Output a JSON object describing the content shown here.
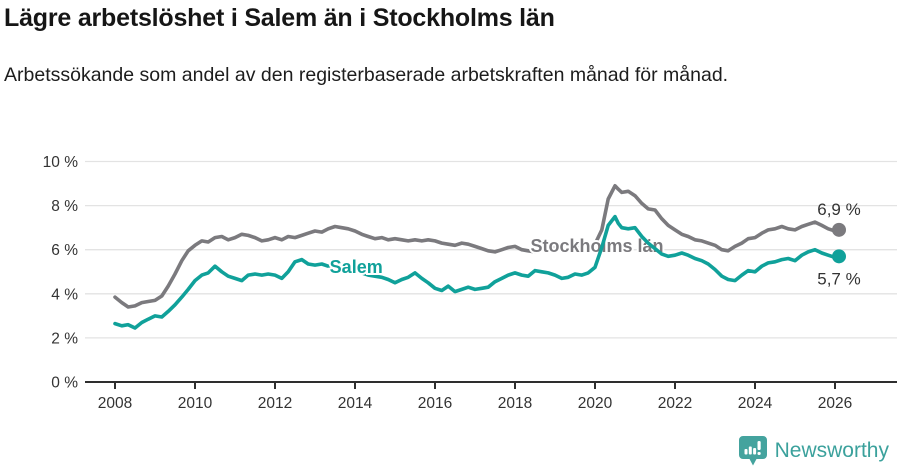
{
  "header": {
    "title": "Lägre arbetslöshet i Salem än i Stockholms län",
    "subtitle": "Arbetssökande som andel av den registerbaserade arbetskraften månad för månad."
  },
  "chart_data": {
    "type": "line",
    "title": "Lägre arbetslöshet i Salem än i Stockholms län",
    "xlabel": "",
    "ylabel": "",
    "x_range": [
      2007.3,
      2027.5
    ],
    "ylim": [
      0,
      10
    ],
    "grid": true,
    "legend": "inline-labels",
    "y_ticks": [
      {
        "value": 0,
        "label": "0 %"
      },
      {
        "value": 2,
        "label": "2 %"
      },
      {
        "value": 4,
        "label": "4 %"
      },
      {
        "value": 6,
        "label": "6 %"
      },
      {
        "value": 8,
        "label": "8 %"
      },
      {
        "value": 10,
        "label": "10 %"
      }
    ],
    "x_ticks": [
      2008,
      2010,
      2012,
      2014,
      2016,
      2018,
      2020,
      2022,
      2024,
      2026
    ],
    "colors": {
      "stockholm_gray": "#7b7a7e",
      "salem_teal": "#10a19a",
      "axis": "#2e2e2e",
      "gridline": "#e3e3e3",
      "value_label": "#333333"
    },
    "series": [
      {
        "name": "Stockholms län",
        "color": "#7b7a7e",
        "end_label": "6,9 %",
        "end_label_side": "above",
        "name_label_pos": {
          "x": 2020.05,
          "y": 6.17
        },
        "points": [
          [
            2008.0,
            3.85
          ],
          [
            2008.17,
            3.6
          ],
          [
            2008.33,
            3.4
          ],
          [
            2008.5,
            3.45
          ],
          [
            2008.67,
            3.6
          ],
          [
            2008.83,
            3.65
          ],
          [
            2009.0,
            3.7
          ],
          [
            2009.17,
            3.9
          ],
          [
            2009.33,
            4.35
          ],
          [
            2009.5,
            4.9
          ],
          [
            2009.67,
            5.5
          ],
          [
            2009.83,
            5.95
          ],
          [
            2010.0,
            6.2
          ],
          [
            2010.17,
            6.4
          ],
          [
            2010.33,
            6.35
          ],
          [
            2010.5,
            6.55
          ],
          [
            2010.67,
            6.6
          ],
          [
            2010.83,
            6.45
          ],
          [
            2011.0,
            6.55
          ],
          [
            2011.17,
            6.7
          ],
          [
            2011.33,
            6.65
          ],
          [
            2011.5,
            6.55
          ],
          [
            2011.67,
            6.4
          ],
          [
            2011.83,
            6.45
          ],
          [
            2012.0,
            6.55
          ],
          [
            2012.17,
            6.45
          ],
          [
            2012.33,
            6.6
          ],
          [
            2012.5,
            6.55
          ],
          [
            2012.67,
            6.65
          ],
          [
            2012.83,
            6.75
          ],
          [
            2013.0,
            6.85
          ],
          [
            2013.17,
            6.8
          ],
          [
            2013.33,
            6.95
          ],
          [
            2013.5,
            7.05
          ],
          [
            2013.67,
            7.0
          ],
          [
            2013.83,
            6.95
          ],
          [
            2014.0,
            6.85
          ],
          [
            2014.17,
            6.7
          ],
          [
            2014.33,
            6.6
          ],
          [
            2014.5,
            6.5
          ],
          [
            2014.67,
            6.55
          ],
          [
            2014.83,
            6.45
          ],
          [
            2015.0,
            6.5
          ],
          [
            2015.17,
            6.45
          ],
          [
            2015.33,
            6.4
          ],
          [
            2015.5,
            6.45
          ],
          [
            2015.67,
            6.4
          ],
          [
            2015.83,
            6.45
          ],
          [
            2016.0,
            6.4
          ],
          [
            2016.17,
            6.3
          ],
          [
            2016.33,
            6.25
          ],
          [
            2016.5,
            6.2
          ],
          [
            2016.67,
            6.3
          ],
          [
            2016.83,
            6.25
          ],
          [
            2017.0,
            6.15
          ],
          [
            2017.17,
            6.05
          ],
          [
            2017.33,
            5.95
          ],
          [
            2017.5,
            5.9
          ],
          [
            2017.67,
            6.0
          ],
          [
            2017.83,
            6.1
          ],
          [
            2018.0,
            6.15
          ],
          [
            2018.17,
            6.0
          ],
          [
            2018.33,
            5.95
          ],
          [
            2018.5,
            5.9
          ],
          [
            2018.67,
            6.0
          ],
          [
            2018.83,
            6.05
          ],
          [
            2019.0,
            6.1
          ],
          [
            2019.17,
            6.0
          ],
          [
            2019.33,
            5.95
          ],
          [
            2019.5,
            6.05
          ],
          [
            2019.67,
            6.1
          ],
          [
            2019.83,
            6.15
          ],
          [
            2020.0,
            6.25
          ],
          [
            2020.17,
            6.9
          ],
          [
            2020.33,
            8.3
          ],
          [
            2020.5,
            8.9
          ],
          [
            2020.58,
            8.75
          ],
          [
            2020.67,
            8.6
          ],
          [
            2020.83,
            8.65
          ],
          [
            2021.0,
            8.45
          ],
          [
            2021.17,
            8.1
          ],
          [
            2021.33,
            7.85
          ],
          [
            2021.5,
            7.8
          ],
          [
            2021.67,
            7.4
          ],
          [
            2021.83,
            7.1
          ],
          [
            2022.0,
            6.9
          ],
          [
            2022.17,
            6.7
          ],
          [
            2022.33,
            6.6
          ],
          [
            2022.5,
            6.45
          ],
          [
            2022.67,
            6.4
          ],
          [
            2022.83,
            6.3
          ],
          [
            2023.0,
            6.2
          ],
          [
            2023.17,
            6.0
          ],
          [
            2023.33,
            5.95
          ],
          [
            2023.5,
            6.15
          ],
          [
            2023.67,
            6.3
          ],
          [
            2023.83,
            6.5
          ],
          [
            2024.0,
            6.55
          ],
          [
            2024.17,
            6.75
          ],
          [
            2024.33,
            6.9
          ],
          [
            2024.5,
            6.95
          ],
          [
            2024.67,
            7.05
          ],
          [
            2024.83,
            6.95
          ],
          [
            2025.0,
            6.9
          ],
          [
            2025.17,
            7.05
          ],
          [
            2025.33,
            7.15
          ],
          [
            2025.5,
            7.25
          ],
          [
            2025.67,
            7.1
          ],
          [
            2025.83,
            6.95
          ],
          [
            2026.0,
            6.85
          ],
          [
            2026.1,
            6.9
          ]
        ]
      },
      {
        "name": "Salem",
        "color": "#10a19a",
        "end_label": "5,7 %",
        "end_label_side": "below",
        "name_label_pos": {
          "x": 2014.03,
          "y": 5.21
        },
        "points": [
          [
            2008.0,
            2.65
          ],
          [
            2008.17,
            2.55
          ],
          [
            2008.33,
            2.6
          ],
          [
            2008.5,
            2.45
          ],
          [
            2008.67,
            2.7
          ],
          [
            2008.83,
            2.85
          ],
          [
            2009.0,
            3.0
          ],
          [
            2009.17,
            2.95
          ],
          [
            2009.33,
            3.2
          ],
          [
            2009.5,
            3.5
          ],
          [
            2009.67,
            3.85
          ],
          [
            2009.83,
            4.2
          ],
          [
            2010.0,
            4.6
          ],
          [
            2010.17,
            4.85
          ],
          [
            2010.33,
            4.95
          ],
          [
            2010.5,
            5.25
          ],
          [
            2010.67,
            5.0
          ],
          [
            2010.83,
            4.8
          ],
          [
            2011.0,
            4.7
          ],
          [
            2011.17,
            4.6
          ],
          [
            2011.33,
            4.85
          ],
          [
            2011.5,
            4.9
          ],
          [
            2011.67,
            4.85
          ],
          [
            2011.83,
            4.9
          ],
          [
            2012.0,
            4.85
          ],
          [
            2012.17,
            4.7
          ],
          [
            2012.33,
            5.0
          ],
          [
            2012.5,
            5.45
          ],
          [
            2012.67,
            5.55
          ],
          [
            2012.83,
            5.35
          ],
          [
            2013.0,
            5.3
          ],
          [
            2013.17,
            5.35
          ],
          [
            2013.33,
            5.25
          ],
          [
            2013.5,
            5.2
          ],
          [
            2013.67,
            5.15
          ],
          [
            2013.83,
            5.1
          ],
          [
            2014.0,
            5.05
          ],
          [
            2014.17,
            4.95
          ],
          [
            2014.33,
            4.85
          ],
          [
            2014.5,
            4.8
          ],
          [
            2014.67,
            4.75
          ],
          [
            2014.83,
            4.65
          ],
          [
            2015.0,
            4.5
          ],
          [
            2015.17,
            4.65
          ],
          [
            2015.33,
            4.75
          ],
          [
            2015.5,
            4.95
          ],
          [
            2015.67,
            4.7
          ],
          [
            2015.83,
            4.5
          ],
          [
            2016.0,
            4.25
          ],
          [
            2016.17,
            4.15
          ],
          [
            2016.33,
            4.35
          ],
          [
            2016.5,
            4.1
          ],
          [
            2016.67,
            4.2
          ],
          [
            2016.83,
            4.3
          ],
          [
            2017.0,
            4.2
          ],
          [
            2017.17,
            4.25
          ],
          [
            2017.33,
            4.3
          ],
          [
            2017.5,
            4.55
          ],
          [
            2017.67,
            4.7
          ],
          [
            2017.83,
            4.85
          ],
          [
            2018.0,
            4.95
          ],
          [
            2018.17,
            4.85
          ],
          [
            2018.33,
            4.8
          ],
          [
            2018.5,
            5.05
          ],
          [
            2018.67,
            5.0
          ],
          [
            2018.83,
            4.95
          ],
          [
            2019.0,
            4.85
          ],
          [
            2019.17,
            4.7
          ],
          [
            2019.33,
            4.75
          ],
          [
            2019.5,
            4.9
          ],
          [
            2019.67,
            4.85
          ],
          [
            2019.83,
            4.95
          ],
          [
            2020.0,
            5.2
          ],
          [
            2020.17,
            6.1
          ],
          [
            2020.33,
            7.1
          ],
          [
            2020.5,
            7.5
          ],
          [
            2020.58,
            7.2
          ],
          [
            2020.67,
            7.0
          ],
          [
            2020.83,
            6.95
          ],
          [
            2021.0,
            7.0
          ],
          [
            2021.17,
            6.6
          ],
          [
            2021.33,
            6.3
          ],
          [
            2021.5,
            6.05
          ],
          [
            2021.67,
            5.8
          ],
          [
            2021.83,
            5.7
          ],
          [
            2022.0,
            5.75
          ],
          [
            2022.17,
            5.85
          ],
          [
            2022.33,
            5.75
          ],
          [
            2022.5,
            5.6
          ],
          [
            2022.67,
            5.5
          ],
          [
            2022.83,
            5.35
          ],
          [
            2023.0,
            5.1
          ],
          [
            2023.17,
            4.8
          ],
          [
            2023.33,
            4.65
          ],
          [
            2023.5,
            4.6
          ],
          [
            2023.67,
            4.85
          ],
          [
            2023.83,
            5.05
          ],
          [
            2024.0,
            5.0
          ],
          [
            2024.17,
            5.25
          ],
          [
            2024.33,
            5.4
          ],
          [
            2024.5,
            5.45
          ],
          [
            2024.67,
            5.55
          ],
          [
            2024.83,
            5.6
          ],
          [
            2025.0,
            5.5
          ],
          [
            2025.17,
            5.75
          ],
          [
            2025.33,
            5.9
          ],
          [
            2025.5,
            6.0
          ],
          [
            2025.67,
            5.85
          ],
          [
            2025.83,
            5.75
          ],
          [
            2026.0,
            5.65
          ],
          [
            2026.1,
            5.7
          ]
        ]
      }
    ]
  },
  "footer": {
    "brand": "Newsworthy",
    "brand_color": "#3ba19c"
  }
}
